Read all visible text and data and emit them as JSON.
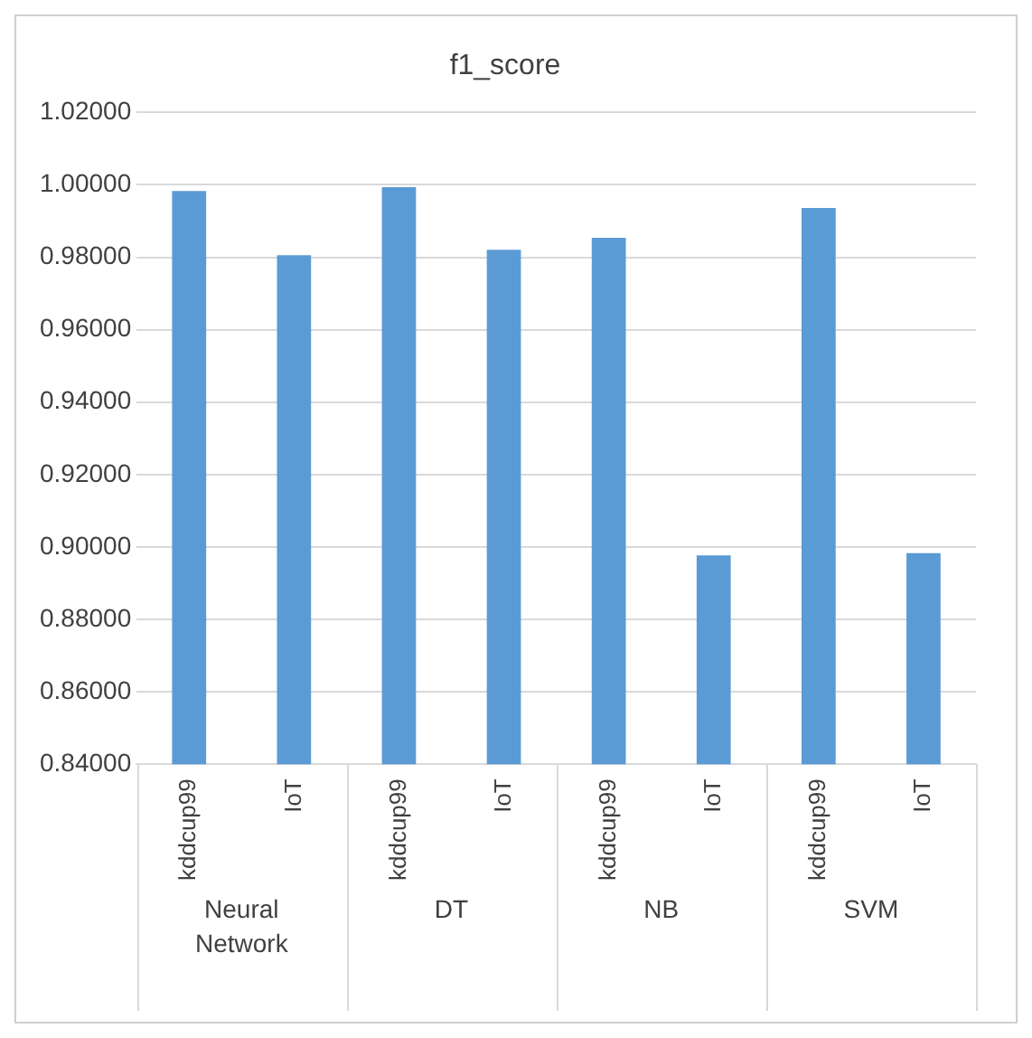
{
  "chart_data": {
    "type": "bar",
    "title": "f1_score",
    "categories": [
      "kddcup99",
      "IoT",
      "kddcup99",
      "IoT",
      "kddcup99",
      "IoT",
      "kddcup99",
      "IoT"
    ],
    "values": [
      0.9983,
      0.9806,
      0.9994,
      0.9821,
      0.9854,
      0.8977,
      0.9936,
      0.8983
    ],
    "color": "#5b9bd5",
    "annotations": [
      "Neural Network",
      "DT",
      "NB",
      "SVM"
    ],
    "ylim": [
      0.84,
      1.02
    ],
    "yticks": [
      {
        "value": 0.84,
        "label": "0.84000"
      },
      {
        "value": 0.86,
        "label": "0.86000"
      },
      {
        "value": 0.88,
        "label": "0.88000"
      },
      {
        "value": 0.9,
        "label": "0.90000"
      },
      {
        "value": 0.92,
        "label": "0.92000"
      },
      {
        "value": 0.94,
        "label": "0.94000"
      },
      {
        "value": 0.96,
        "label": "0.96000"
      },
      {
        "value": 0.98,
        "label": "0.98000"
      },
      {
        "value": 1.0,
        "label": "1.00000"
      },
      {
        "value": 1.02,
        "label": "1.02000"
      }
    ],
    "grid": "y",
    "legend": false
  }
}
